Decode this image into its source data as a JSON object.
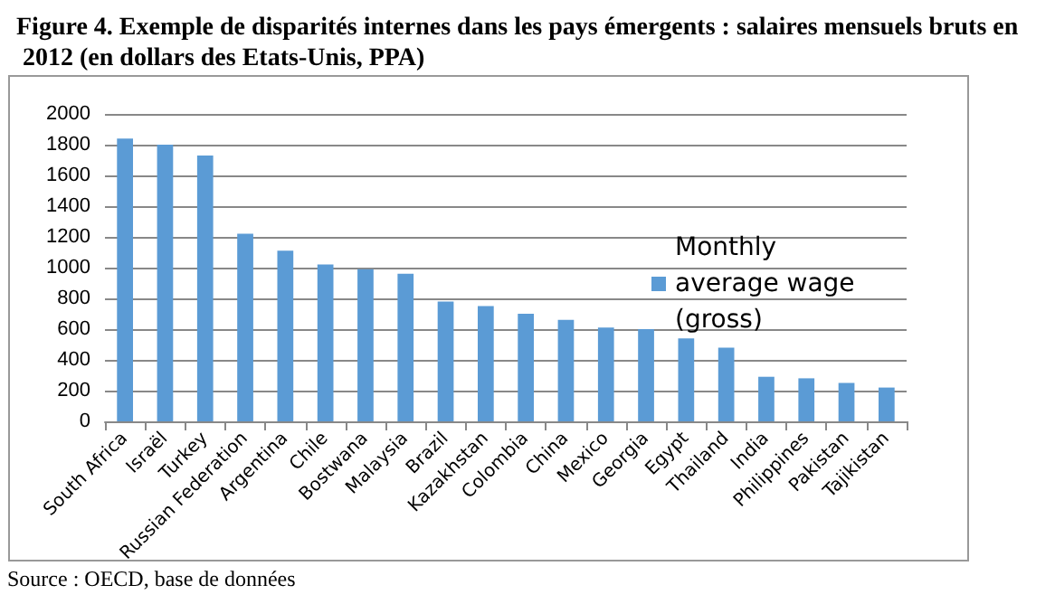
{
  "chart_data": {
    "type": "bar",
    "title": "Figure 4. Exemple de disparités internes dans les pays émergents : salaires mensuels bruts en 2012 (en dollars des Etats-Unis, PPA)",
    "categories": [
      "South Africa",
      "Israël",
      "Turkey",
      "Russian Federation",
      "Argentina",
      "Chile",
      "Bostwana",
      "Malaysia",
      "Brazil",
      "Kazakhstan",
      "Colombia",
      "China",
      "Mexico",
      "Georgia",
      "Egypt",
      "Thailand",
      "India",
      "Philippines",
      "Pakistan",
      "Tajikistan"
    ],
    "series": [
      {
        "name": "Monthly average wage (gross)",
        "color": "#5b9bd5",
        "values": [
          1840,
          1800,
          1730,
          1220,
          1110,
          1020,
          990,
          960,
          780,
          750,
          700,
          660,
          610,
          600,
          540,
          480,
          290,
          280,
          250,
          220
        ]
      }
    ],
    "ylim": [
      0,
      2000
    ],
    "yticks": [
      0,
      200,
      400,
      600,
      800,
      1000,
      1200,
      1400,
      1600,
      1800,
      2000
    ],
    "grid": "y",
    "legend": "right",
    "annotations": [
      "Source : OECD, base de données"
    ]
  }
}
